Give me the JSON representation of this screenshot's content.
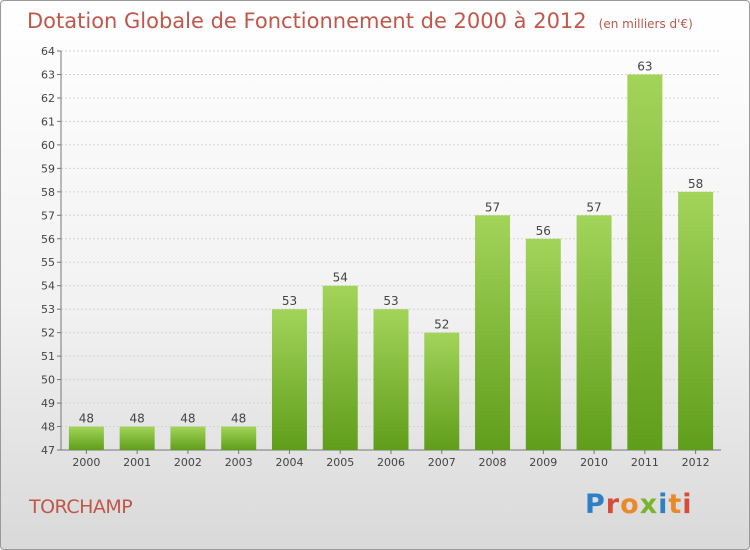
{
  "title": "Dotation Globale de Fonctionnement de 2000 à 2012",
  "subtitle": "(en milliers d'€)",
  "commune": "TORCHAMP",
  "logo": {
    "letters": [
      "P",
      "r",
      "o",
      "x",
      "i",
      "t",
      "i"
    ],
    "colors": [
      "#2e7fc3",
      "#e8892a",
      "#7ab42c",
      "#d94a3a"
    ]
  },
  "colors": {
    "title": "#c0574a",
    "bar_light": "#a3d45a",
    "bar_dark": "#5f9e1a",
    "grid": "#d0d0d0"
  },
  "chart_data": {
    "type": "bar",
    "categories": [
      "2000",
      "2001",
      "2002",
      "2003",
      "2004",
      "2005",
      "2006",
      "2007",
      "2008",
      "2009",
      "2010",
      "2011",
      "2012"
    ],
    "values": [
      48,
      48,
      48,
      48,
      53,
      54,
      53,
      52,
      57,
      56,
      57,
      63,
      58
    ],
    "ylim": [
      47,
      64
    ],
    "yticks": [
      47,
      48,
      49,
      50,
      51,
      52,
      53,
      54,
      55,
      56,
      57,
      58,
      59,
      60,
      61,
      62,
      63,
      64
    ],
    "grid": true,
    "data_labels": true
  }
}
